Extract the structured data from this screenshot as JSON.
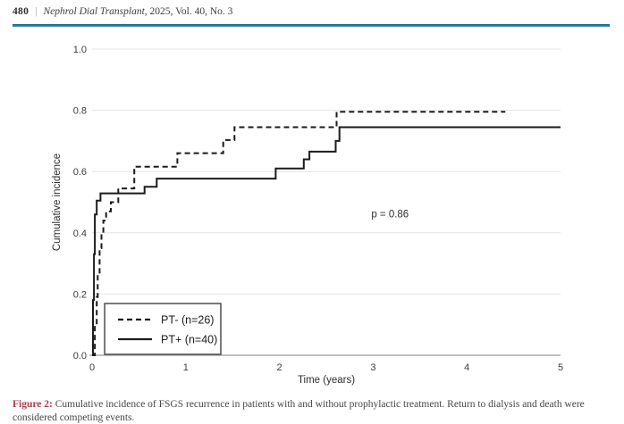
{
  "header": {
    "page_number": "480",
    "separator": "|",
    "journal": "Nephrol Dial Transplant",
    "issue_info": ", 2025, Vol. 40, No. 3"
  },
  "caption": {
    "label": "Figure 2:",
    "label_color": "#a93c4a",
    "text": " Cumulative incidence of FSGS recurrence in patients with and without prophylactic treatment. Return to dialysis and death were considered competing events."
  },
  "colors": {
    "rule_teal": "#1f7096",
    "curve": "#1b1b1b",
    "grid": "#e4e4e4",
    "axis": "#ababab",
    "tick_text": "#3c3c3c",
    "legend_border": "#4d4d4d"
  },
  "chart_data": {
    "type": "line",
    "subtype": "step-cumulative-incidence",
    "title": "",
    "xlabel": "Time (years)",
    "ylabel": "Cumulative incidence",
    "xlim": [
      0,
      5
    ],
    "ylim": [
      0,
      1
    ],
    "xticks": [
      "0",
      "1",
      "2",
      "3",
      "4",
      "5"
    ],
    "ytick_values": [
      0,
      0.2,
      0.4,
      0.6,
      0.8,
      1
    ],
    "ytick_labels": [
      "0.0",
      "0.2",
      "0.4",
      "0.6",
      "0.8",
      "1.0"
    ],
    "grid": "horizontal",
    "annotation": {
      "text": "p = 0.86",
      "x": 3.18,
      "y": 0.45
    },
    "legend": {
      "position": "lower-left",
      "entries": [
        {
          "label": "PT- (n=26)",
          "style": "dashed"
        },
        {
          "label": "PT+ (n=40)",
          "style": "solid"
        }
      ]
    },
    "series": [
      {
        "name": "PT- (n=26)",
        "style": "dashed",
        "color": "#1b1b1b",
        "steps": [
          [
            0,
            0
          ],
          [
            0.03,
            0.1
          ],
          [
            0.05,
            0.19
          ],
          [
            0.06,
            0.27
          ],
          [
            0.08,
            0.35
          ],
          [
            0.1,
            0.4
          ],
          [
            0.12,
            0.44
          ],
          [
            0.15,
            0.47
          ],
          [
            0.2,
            0.5
          ],
          [
            0.28,
            0.545
          ],
          [
            0.45,
            0.616
          ],
          [
            0.91,
            0.66
          ],
          [
            1.4,
            0.703
          ],
          [
            1.52,
            0.745
          ],
          [
            2.61,
            0.795
          ]
        ],
        "end_time": 4.41
      },
      {
        "name": "PT+ (n=40)",
        "style": "solid",
        "color": "#1b1b1b",
        "steps": [
          [
            0,
            0
          ],
          [
            0.01,
            0.18
          ],
          [
            0.02,
            0.33
          ],
          [
            0.03,
            0.46
          ],
          [
            0.05,
            0.505
          ],
          [
            0.09,
            0.529
          ],
          [
            0.56,
            0.55
          ],
          [
            0.69,
            0.577
          ],
          [
            1.96,
            0.61
          ],
          [
            2.26,
            0.64
          ],
          [
            2.32,
            0.665
          ],
          [
            2.6,
            0.7
          ],
          [
            2.64,
            0.745
          ]
        ],
        "end_time": 5.0
      }
    ]
  }
}
